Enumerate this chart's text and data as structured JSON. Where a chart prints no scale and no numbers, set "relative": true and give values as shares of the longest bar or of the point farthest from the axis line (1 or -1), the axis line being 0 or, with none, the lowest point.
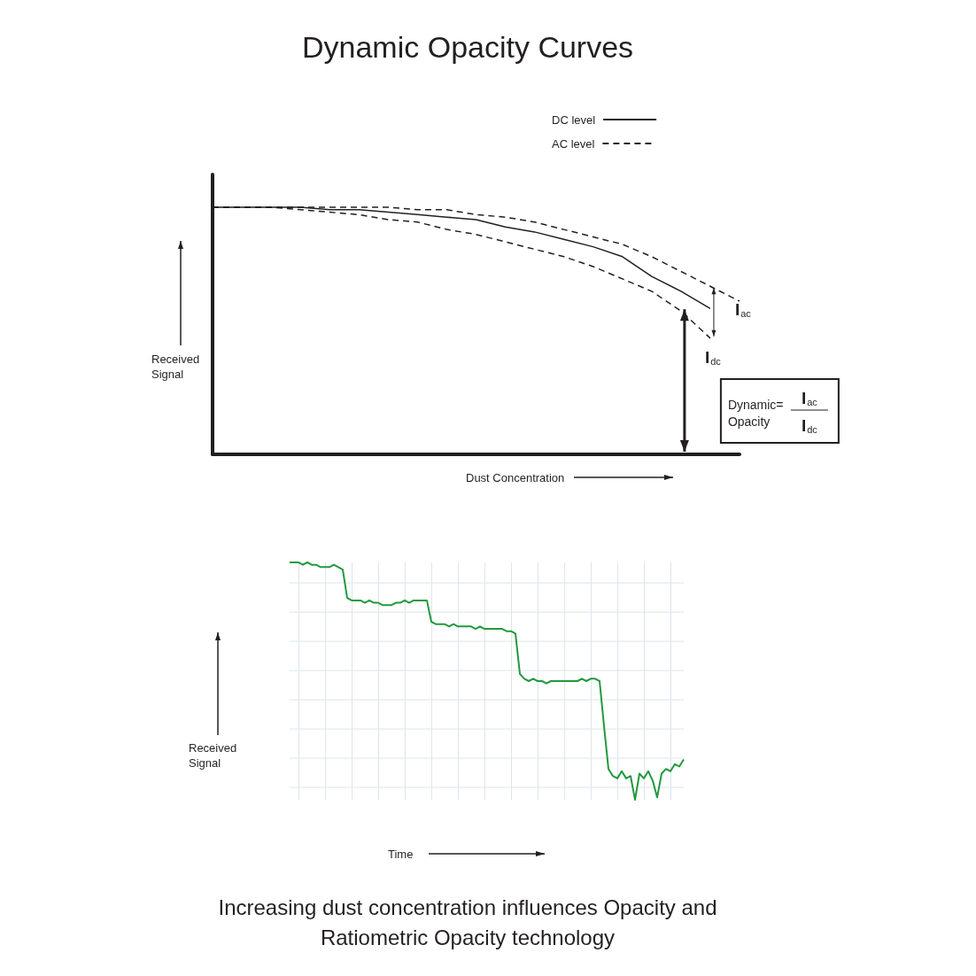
{
  "chart_data": [
    {
      "type": "line",
      "title": "Dynamic Opacity Curves",
      "xlabel": "Dust Concentration",
      "ylabel": "Received Signal",
      "relative": true,
      "categories": [
        null,
        null,
        null,
        null,
        null,
        null,
        null,
        null,
        null,
        null,
        null,
        null,
        null,
        null,
        null,
        null,
        null,
        null,
        null
      ],
      "series": [
        {
          "name": "DC level",
          "color": "#231f20",
          "line_style": "solid",
          "values": [
            1,
            1,
            1,
            1,
            0.99,
            0.99,
            0.98,
            0.97,
            0.96,
            0.95,
            0.92,
            0.9,
            0.87,
            0.84,
            0.8,
            0.72,
            0.66,
            0.59,
            null
          ]
        },
        {
          "name": "AC level",
          "color": "#231f20",
          "line_style": "dashed",
          "values": [
            1,
            1,
            1,
            1,
            1,
            1,
            1,
            0.99,
            0.99,
            0.97,
            0.96,
            0.94,
            0.91,
            0.88,
            0.85,
            0.8,
            0.74,
            0.68,
            0.62
          ]
        },
        {
          "color": "#231f20",
          "line_style": "dashed",
          "values": [
            1,
            1,
            1,
            0.99,
            0.98,
            0.97,
            0.95,
            0.94,
            0.91,
            0.89,
            0.86,
            0.83,
            0.8,
            0.76,
            0.71,
            0.66,
            0.58,
            0.47,
            null
          ]
        }
      ],
      "legend": "top right",
      "marker": "none",
      "grid": false,
      "annotations": [
        "I$_{ac}$",
        "I$_{dc}$",
        "Dynamic=\nOpacity",
        "I$_{ac}$",
        "I$_{dc}$"
      ]
    },
    {
      "type": "line",
      "xlabel": "Time",
      "ylabel": "Received Signal",
      "relative": true,
      "categories": [
        null,
        null,
        null,
        null,
        null,
        null,
        null,
        null,
        null,
        null,
        null,
        null,
        null,
        null,
        null,
        null,
        null,
        null,
        null,
        null,
        null,
        null,
        null,
        null,
        null,
        null,
        null,
        null,
        null,
        null,
        null,
        null,
        null,
        null,
        null,
        null,
        null,
        null,
        null,
        null,
        null,
        null,
        null,
        null,
        null,
        null,
        null,
        null,
        null,
        null,
        null,
        null,
        null,
        null,
        null,
        null,
        null,
        null,
        null,
        null,
        null,
        null,
        null,
        null,
        null,
        null,
        null,
        null,
        null,
        null,
        null,
        null,
        null,
        null,
        null,
        null,
        null,
        null,
        null,
        null,
        null,
        null,
        null,
        null,
        null,
        null,
        null,
        null,
        null,
        null
      ],
      "series": [
        {
          "color": "#23993f",
          "values": [
            1,
            1,
            1,
            0.99,
            1,
            0.99,
            0.99,
            0.98,
            0.98,
            0.98,
            0.99,
            0.98,
            0.97,
            0.85,
            0.84,
            0.84,
            0.84,
            0.83,
            0.84,
            0.83,
            0.83,
            0.82,
            0.82,
            0.82,
            0.83,
            0.83,
            0.84,
            0.83,
            0.84,
            0.84,
            0.84,
            0.84,
            0.75,
            0.74,
            0.74,
            0.74,
            0.73,
            0.74,
            0.73,
            0.73,
            0.73,
            0.73,
            0.72,
            0.73,
            0.72,
            0.72,
            0.72,
            0.72,
            0.72,
            0.71,
            0.71,
            0.7,
            0.53,
            0.51,
            0.5,
            0.51,
            0.5,
            0.5,
            0.49,
            0.5,
            0.5,
            0.5,
            0.5,
            0.5,
            0.5,
            0.5,
            0.51,
            0.5,
            0.51,
            0.51,
            0.5,
            0.31,
            0.13,
            0.1,
            0.09,
            0.12,
            0.09,
            0.1,
            0,
            0.11,
            0.09,
            0.12,
            0.08,
            0.01,
            0.11,
            0.13,
            0.12,
            0.15,
            0.14,
            0.17
          ]
        }
      ],
      "marker": "none",
      "grid": true,
      "annotations": [
        "Increasing dust concentration influences Opacity and Ratiometric Opacity technology"
      ]
    }
  ]
}
